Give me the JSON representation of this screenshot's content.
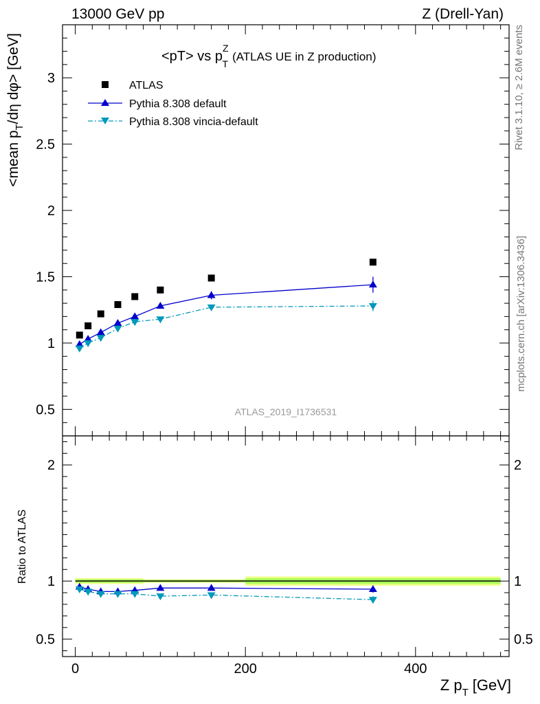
{
  "header": {
    "left": "13000 GeV pp",
    "right": "Z (Drell-Yan)"
  },
  "side_labels": {
    "rivet": "Rivet 3.1.10, ≥ 2.6M events",
    "mcplots": "mcplots.cern.ch [arXiv:1306.3436]"
  },
  "watermark": "ATLAS_2019_I1736531",
  "chart_data": [
    {
      "type": "scatter",
      "title": "<pT> vs p_T^Z (ATLAS UE in Z production)",
      "title_main": "<pT> vs p",
      "title_sup": "Z",
      "title_sub": "T",
      "title_note": "(ATLAS UE in Z production)",
      "ylabel": "<mean p_T/dη dφ> [GeV]",
      "xlim": [
        -15,
        510
      ],
      "ylim": [
        0.3,
        3.4
      ],
      "yticks": [
        0.5,
        1,
        1.5,
        2,
        2.5,
        3
      ],
      "ytick_labels": [
        "0.5",
        "1",
        "1.5",
        "2",
        "2.5",
        "3"
      ],
      "grid": false,
      "legend_position": "top-left",
      "series": [
        {
          "name": "ATLAS",
          "style": "markers",
          "marker": "square",
          "color": "#000000",
          "x": [
            5,
            15,
            30,
            50,
            70,
            100,
            160,
            350
          ],
          "y": [
            1.06,
            1.13,
            1.22,
            1.29,
            1.35,
            1.4,
            1.49,
            1.61
          ],
          "err": [
            0,
            0,
            0,
            0,
            0,
            0,
            0,
            0
          ]
        },
        {
          "name": "Pythia 8.308 default",
          "style": "solid",
          "marker": "triangle-up",
          "color": "#0000cc",
          "x": [
            5,
            15,
            30,
            50,
            70,
            100,
            160,
            350
          ],
          "y": [
            0.99,
            1.03,
            1.08,
            1.15,
            1.2,
            1.28,
            1.36,
            1.44
          ],
          "err": [
            0.01,
            0.01,
            0.01,
            0.01,
            0.01,
            0.01,
            0.03,
            0.06
          ]
        },
        {
          "name": "Pythia 8.308 vincia-default",
          "style": "dashdot",
          "marker": "triangle-down",
          "color": "#0099bb",
          "x": [
            5,
            15,
            30,
            50,
            70,
            100,
            160,
            350
          ],
          "y": [
            0.96,
            1.0,
            1.04,
            1.11,
            1.16,
            1.18,
            1.27,
            1.28
          ],
          "err": [
            0.01,
            0.01,
            0.01,
            0.01,
            0.01,
            0.01,
            0.02,
            0.04
          ]
        }
      ]
    },
    {
      "type": "scatter",
      "ylabel": "Ratio to ATLAS",
      "xlabel": "Z p_T [GeV]",
      "xlabel_main": "Z p",
      "xlabel_sub": "T",
      "xlabel_unit": "[GeV]",
      "xlim": [
        -15,
        510
      ],
      "ylim": [
        0.35,
        2.25
      ],
      "xticks": [
        0,
        200,
        400
      ],
      "xtick_labels": [
        "0",
        "200",
        "400"
      ],
      "yticks": [
        0.5,
        1,
        2
      ],
      "ytick_labels": [
        "0.5",
        "1",
        "2"
      ],
      "reference_line": 1,
      "uncertainty_bands": [
        {
          "x": [
            0,
            80
          ],
          "inner": [
            0.985,
            1.015
          ],
          "outer": [
            0.975,
            1.025
          ]
        },
        {
          "x": [
            80,
            200
          ],
          "inner": [
            0.99,
            1.01
          ],
          "outer": [
            0.985,
            1.015
          ]
        },
        {
          "x": [
            200,
            500
          ],
          "inner": [
            0.975,
            1.025
          ],
          "outer": [
            0.96,
            1.04
          ]
        }
      ],
      "band_colors": {
        "inner": "#adff5b",
        "outer": "#f0ff8a"
      },
      "series": [
        {
          "name": "Pythia 8.308 default",
          "style": "solid",
          "marker": "triangle-up",
          "color": "#0000cc",
          "x": [
            5,
            15,
            30,
            50,
            70,
            100,
            160,
            350
          ],
          "y": [
            0.95,
            0.93,
            0.91,
            0.91,
            0.92,
            0.94,
            0.94,
            0.93
          ],
          "err": [
            0.01,
            0.01,
            0.01,
            0.01,
            0.01,
            0.01,
            0.01,
            0.03
          ]
        },
        {
          "name": "Pythia 8.308 vincia-default",
          "style": "dashdot",
          "marker": "triangle-down",
          "color": "#0099bb",
          "x": [
            5,
            15,
            30,
            50,
            70,
            100,
            160,
            350
          ],
          "y": [
            0.93,
            0.91,
            0.89,
            0.89,
            0.89,
            0.87,
            0.88,
            0.84
          ],
          "err": [
            0.01,
            0.01,
            0.01,
            0.01,
            0.01,
            0.01,
            0.01,
            0.03
          ]
        }
      ]
    }
  ]
}
